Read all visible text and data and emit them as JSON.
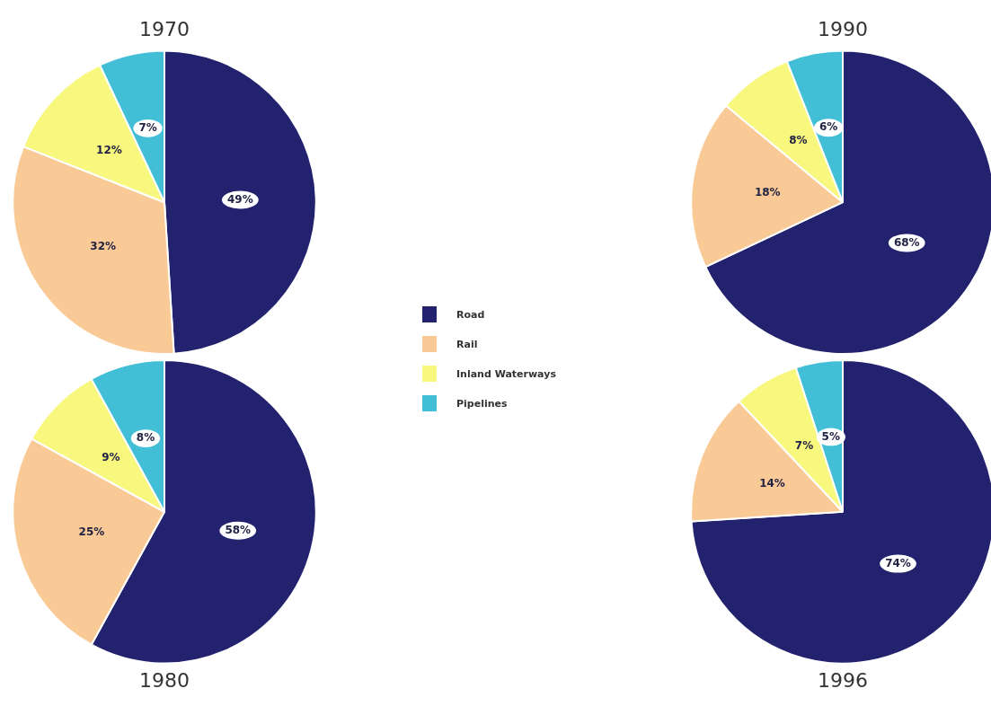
{
  "chart_data": [
    {
      "type": "pie",
      "title": "1970",
      "categories": [
        "Road",
        "Rail",
        "Inland Waterways",
        "Pipelines"
      ],
      "values": [
        49,
        32,
        12,
        7
      ],
      "value_labels": [
        "49%",
        "32%",
        "12%",
        "7%"
      ],
      "colors": [
        "#23226e",
        "#f9ca96",
        "#f8f77e",
        "#42bfd6"
      ],
      "legend": "right"
    },
    {
      "type": "pie",
      "title": "1990",
      "categories": [
        null,
        null,
        null,
        null
      ],
      "values": [
        68,
        18,
        8,
        6
      ],
      "value_labels": [
        "68%",
        "18%",
        "8%",
        "6%"
      ],
      "colors": [
        "#23226e",
        "#f9ca96",
        "#f8f77e",
        "#42bfd6"
      ]
    },
    {
      "type": "pie",
      "title": "1980",
      "categories": [
        null,
        null,
        null,
        null
      ],
      "values": [
        58,
        25,
        9,
        8
      ],
      "value_labels": [
        "58%",
        "25%",
        "9%",
        "8%"
      ],
      "colors": [
        "#23226e",
        "#f9ca96",
        "#f8f77e",
        "#42bfd6"
      ]
    },
    {
      "type": "pie",
      "title": "1996",
      "categories": [
        null,
        null,
        null,
        null
      ],
      "values": [
        74,
        14,
        7,
        5
      ],
      "value_labels": [
        "74%",
        "14%",
        "7%",
        "5%"
      ],
      "colors": [
        "#23226e",
        "#f9ca96",
        "#f8f77e",
        "#42bfd6"
      ]
    }
  ]
}
